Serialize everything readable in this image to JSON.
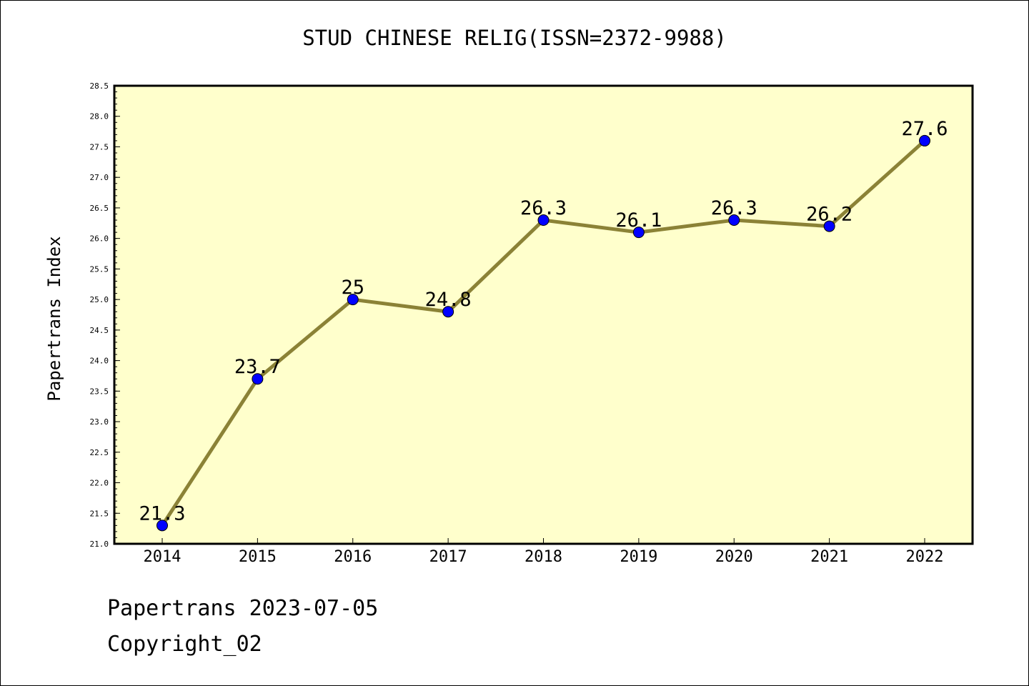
{
  "chart_data": {
    "type": "line",
    "title": "STUD CHINESE RELIG(ISSN=2372-9988)",
    "xlabel": "",
    "ylabel": "Papertrans Index",
    "categories": [
      "2014",
      "2015",
      "2016",
      "2017",
      "2018",
      "2019",
      "2020",
      "2021",
      "2022"
    ],
    "values": [
      21.3,
      23.7,
      25,
      24.8,
      26.3,
      26.1,
      26.3,
      26.2,
      27.6
    ],
    "data_labels": [
      "21.3",
      "23.7",
      "25",
      "24.8",
      "26.3",
      "26.1",
      "26.3",
      "26.2",
      "27.6"
    ],
    "ylim": [
      21.0,
      28.5
    ],
    "yticks": [
      "21.0",
      "21.5",
      "22.0",
      "22.5",
      "23.0",
      "23.5",
      "24.0",
      "24.5",
      "25.0",
      "25.5",
      "26.0",
      "26.5",
      "27.0",
      "27.5",
      "28.0",
      "28.5"
    ],
    "grid": false,
    "colors": {
      "plot_background": "#ffffcc",
      "line": "#8b8236",
      "marker": "#0000ff"
    }
  },
  "footer": {
    "date_text": "Papertrans 2023-07-05",
    "copyright_text": "Copyright_02"
  }
}
